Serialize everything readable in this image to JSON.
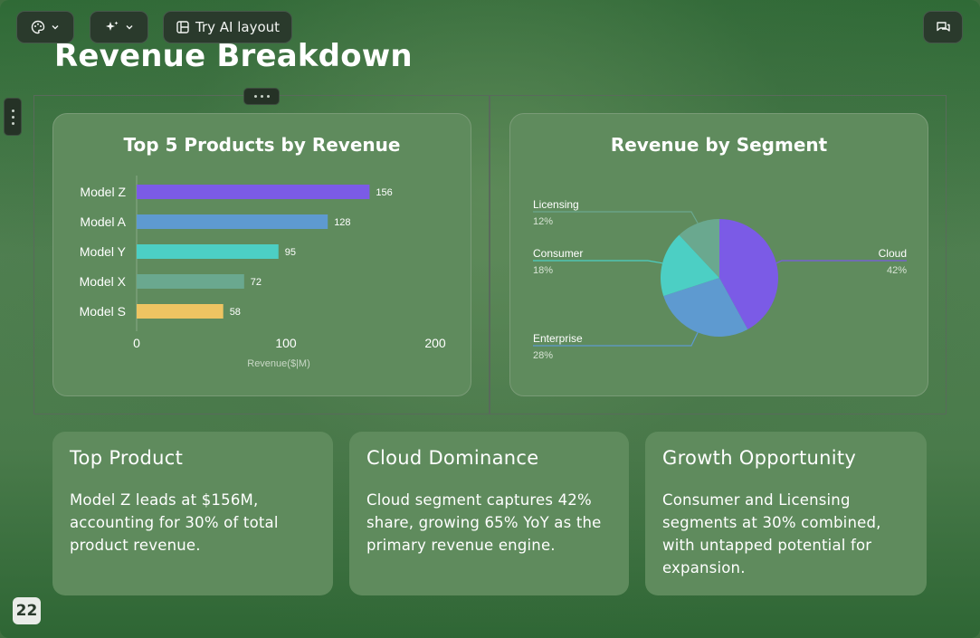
{
  "toolbar": {
    "layout_label": "Try AI layout",
    "icons": {
      "theme": "palette-icon",
      "ai": "sparkles-icon",
      "layout": "layout-icon",
      "comment": "comment-icon",
      "chevron": "chevron-down-icon"
    }
  },
  "slide": {
    "title": "Revenue Breakdown",
    "page_number": "22"
  },
  "chart_data": [
    {
      "type": "bar",
      "orientation": "horizontal",
      "title": "Top 5 Products by Revenue",
      "categories": [
        "Model Z",
        "Model A",
        "Model Y",
        "Model X",
        "Model S"
      ],
      "values": [
        156,
        128,
        95,
        72,
        58
      ],
      "colors": [
        "#7b5be6",
        "#5e9ad0",
        "#4ccfc4",
        "#6aa88f",
        "#eec462"
      ],
      "xlabel": "Revenue($|M)",
      "ylabel": "",
      "xlim": [
        0,
        200
      ],
      "xticks": [
        "0",
        "100",
        "200"
      ],
      "grid": false
    },
    {
      "type": "pie",
      "title": "Revenue by Segment",
      "slices": [
        {
          "label": "Cloud",
          "value": 42,
          "pct": "42%",
          "color": "#7b5be6"
        },
        {
          "label": "Enterprise",
          "value": 28,
          "pct": "28%",
          "color": "#5e9ad0"
        },
        {
          "label": "Consumer",
          "value": 18,
          "pct": "18%",
          "color": "#4ccfc4"
        },
        {
          "label": "Licensing",
          "value": 12,
          "pct": "12%",
          "color": "#6aa88f"
        }
      ]
    }
  ],
  "insights": [
    {
      "title": "Top Product",
      "body": "Model Z leads at $156M, accounting for 30% of total product revenue."
    },
    {
      "title": "Cloud Dominance",
      "body": "Cloud segment captures 42% share, growing 65% YoY as the primary revenue engine."
    },
    {
      "title": "Growth Opportunity",
      "body": "Consumer and Licensing segments at 30% combined, with untapped potential for expansion."
    }
  ]
}
